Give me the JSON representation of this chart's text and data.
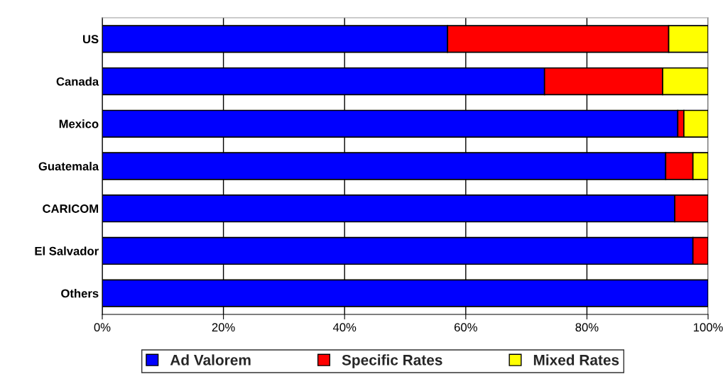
{
  "chart_data": {
    "type": "bar",
    "orientation": "horizontal",
    "stacked": true,
    "categories": [
      "US",
      "Canada",
      "Mexico",
      "Guatemala",
      "CARICOM",
      "El Salvador",
      "Others"
    ],
    "series": [
      {
        "name": "Ad Valorem",
        "color": "#0000ff",
        "values": [
          57,
          73,
          95,
          93,
          94.5,
          97.5,
          100
        ]
      },
      {
        "name": "Specific Rates",
        "color": "#ff0000",
        "values": [
          36.5,
          19.5,
          1,
          4.5,
          5.5,
          2.5,
          null
        ]
      },
      {
        "name": "Mixed Rates",
        "color": "#ffff00",
        "values": [
          6.5,
          7.5,
          4,
          2.5,
          null,
          null,
          null
        ]
      }
    ],
    "xlim": [
      0,
      100
    ],
    "xticks": [
      {
        "value": 0,
        "label": "0%"
      },
      {
        "value": 20,
        "label": "20%"
      },
      {
        "value": 40,
        "label": "40%"
      },
      {
        "value": 60,
        "label": "60%"
      },
      {
        "value": 80,
        "label": "80%"
      },
      {
        "value": 100,
        "label": "100%"
      }
    ],
    "grid": "x",
    "legend": "bottom"
  }
}
